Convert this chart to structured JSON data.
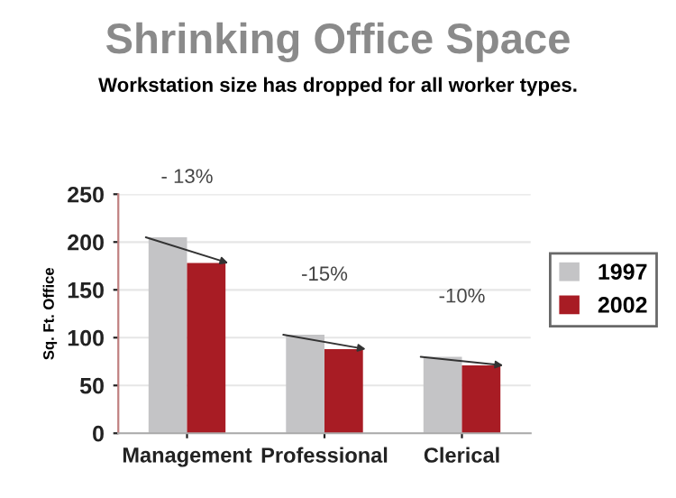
{
  "chart_data": {
    "type": "bar",
    "title": "Shrinking Office Space",
    "subtitle": "Workstation size has dropped for all worker types.",
    "ylabel": "Sq. Ft. Office",
    "categories": [
      "Management",
      "Professional",
      "Clerical"
    ],
    "series": [
      {
        "name": "1997",
        "color": "#c4c4c6",
        "values": [
          205,
          103,
          80
        ]
      },
      {
        "name": "2002",
        "color": "#a81c24",
        "values": [
          178,
          88,
          71
        ]
      }
    ],
    "annotations": [
      "- 13%",
      "-15%",
      "-10%"
    ],
    "ylim": [
      0,
      250
    ],
    "yticks": [
      0,
      50,
      100,
      150,
      200,
      250
    ],
    "grid": "y",
    "legend": "right"
  }
}
